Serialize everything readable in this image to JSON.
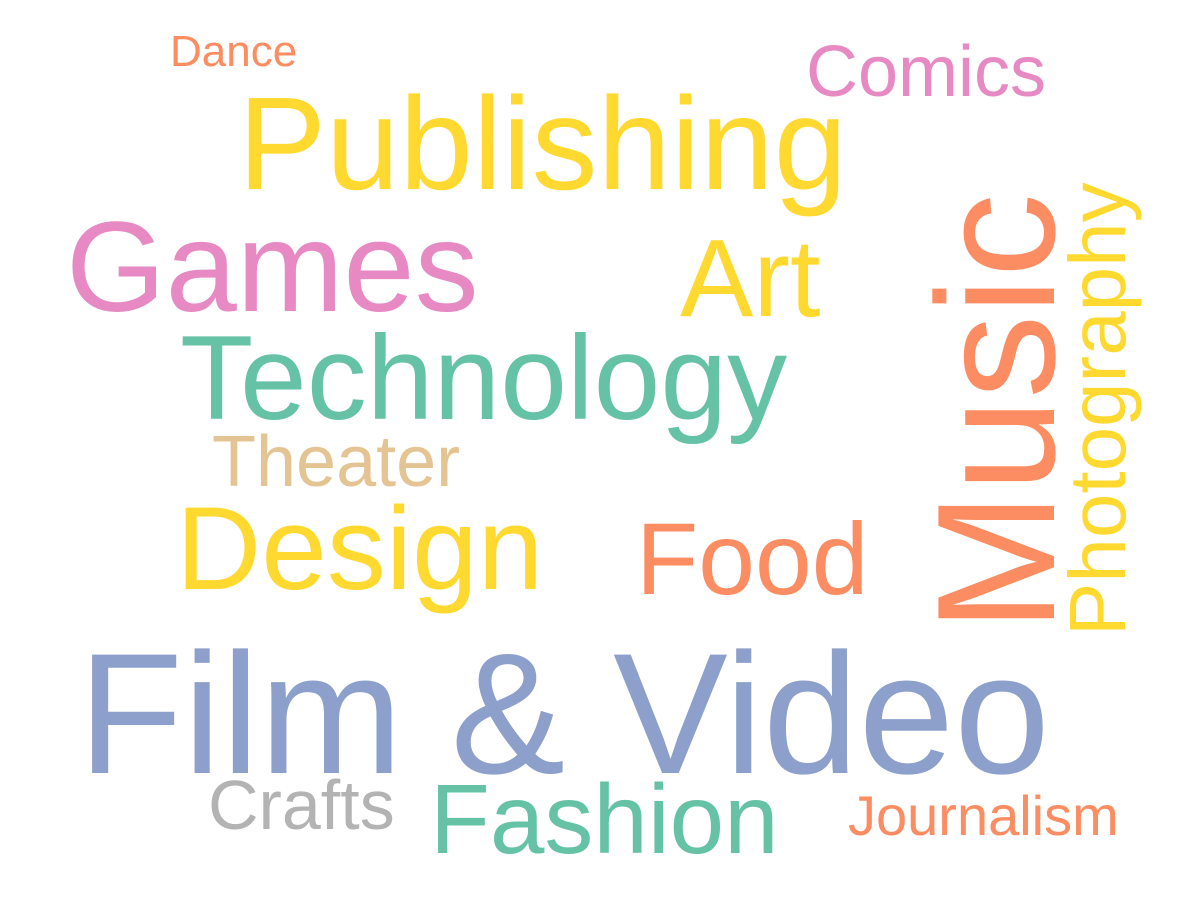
{
  "words": {
    "dance": {
      "text": "Dance",
      "color": "#FC8D62"
    },
    "comics": {
      "text": "Comics",
      "color": "#E78AC3"
    },
    "publishing": {
      "text": "Publishing",
      "color": "#FFD92F"
    },
    "games": {
      "text": "Games",
      "color": "#E78AC3"
    },
    "art": {
      "text": "Art",
      "color": "#FFD92F"
    },
    "technology": {
      "text": "Technology",
      "color": "#66C2A5"
    },
    "theater": {
      "text": "Theater",
      "color": "#E5C494"
    },
    "design": {
      "text": "Design",
      "color": "#FFD92F"
    },
    "food": {
      "text": "Food",
      "color": "#FC8D62"
    },
    "film": {
      "text": "Film & Video",
      "color": "#8DA0CB"
    },
    "crafts": {
      "text": "Crafts",
      "color": "#B3B3B3"
    },
    "fashion": {
      "text": "Fashion",
      "color": "#66C2A5"
    },
    "journalism": {
      "text": "Journalism",
      "color": "#FC8D62"
    },
    "music": {
      "text": "Music",
      "color": "#FC8D62"
    },
    "photography": {
      "text": "Photography",
      "color": "#FFD92F"
    }
  }
}
